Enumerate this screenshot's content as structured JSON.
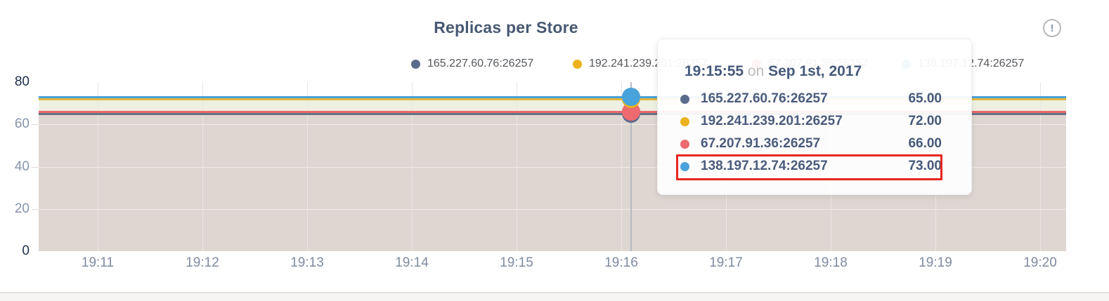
{
  "title": "Replicas per Store",
  "info_icon_label": "!",
  "legend": {
    "items": [
      {
        "label": "165.227.60.76:26257",
        "color": "#5b6b8c"
      },
      {
        "label": "192.241.239.201:26257",
        "color": "#ecb21e"
      },
      {
        "label": "67.207.91.36:26257",
        "color": "#ed6b6e"
      },
      {
        "label": "138.197.12.74:26257",
        "color": "#49a3db"
      }
    ]
  },
  "tooltip": {
    "time": "19:15:55",
    "connector": "on",
    "date": "Sep 1st, 2017",
    "rows": [
      {
        "label": "165.227.60.76:26257",
        "value": "65.00",
        "color": "#5b6b8c"
      },
      {
        "label": "192.241.239.201:26257",
        "value": "72.00",
        "color": "#ecb21e"
      },
      {
        "label": "67.207.91.36:26257",
        "value": "66.00",
        "color": "#ed6b6e"
      },
      {
        "label": "138.197.12.74:26257",
        "value": "73.00",
        "color": "#49a3db"
      }
    ],
    "highlighted_row_index": 3,
    "highlight_color": "#e8261f"
  },
  "chart_data": {
    "type": "area",
    "title": "Replicas per Store",
    "x": [
      "19:11",
      "19:12",
      "19:13",
      "19:14",
      "19:15",
      "19:16",
      "19:17",
      "19:18",
      "19:19",
      "19:20"
    ],
    "series": [
      {
        "name": "165.227.60.76:26257",
        "color": "#5b6b8c",
        "line_color": "rgba(73,88,115,0.8)",
        "values": [
          65,
          65,
          65,
          65,
          65,
          65,
          65,
          65,
          65,
          65
        ]
      },
      {
        "name": "192.241.239.201:26257",
        "color": "#ecb21e",
        "line_color": "#e3b73c",
        "values": [
          72,
          72,
          72,
          72,
          72,
          72,
          72,
          72,
          72,
          72
        ]
      },
      {
        "name": "67.207.91.36:26257",
        "color": "#ed6b6e",
        "line_color": "#e9696d",
        "values": [
          66,
          66,
          66,
          66,
          66,
          66,
          66,
          66,
          66,
          66
        ]
      },
      {
        "name": "138.197.12.74:26257",
        "color": "#49a3db",
        "line_color": "#4ba1d9",
        "values": [
          73,
          73,
          73,
          73,
          73,
          73,
          73,
          73,
          73,
          73
        ]
      }
    ],
    "ylim": [
      0,
      80
    ],
    "y_ticks": [
      0,
      20,
      40,
      60,
      80
    ],
    "grid": true,
    "legend_position": "top",
    "hover_point": {
      "time": "19:15:55",
      "values": {
        "165.227.60.76:26257": 65,
        "192.241.239.201:26257": 72,
        "67.207.91.36:26257": 66,
        "138.197.12.74:26257": 73
      }
    },
    "fills": [
      {
        "from": 0,
        "to": 66,
        "color": "#ded6d1"
      },
      {
        "from": 66,
        "to": 72,
        "color": "#eef0e2"
      },
      {
        "from": 72,
        "to": 73,
        "color": "#f1f3ee"
      }
    ]
  }
}
